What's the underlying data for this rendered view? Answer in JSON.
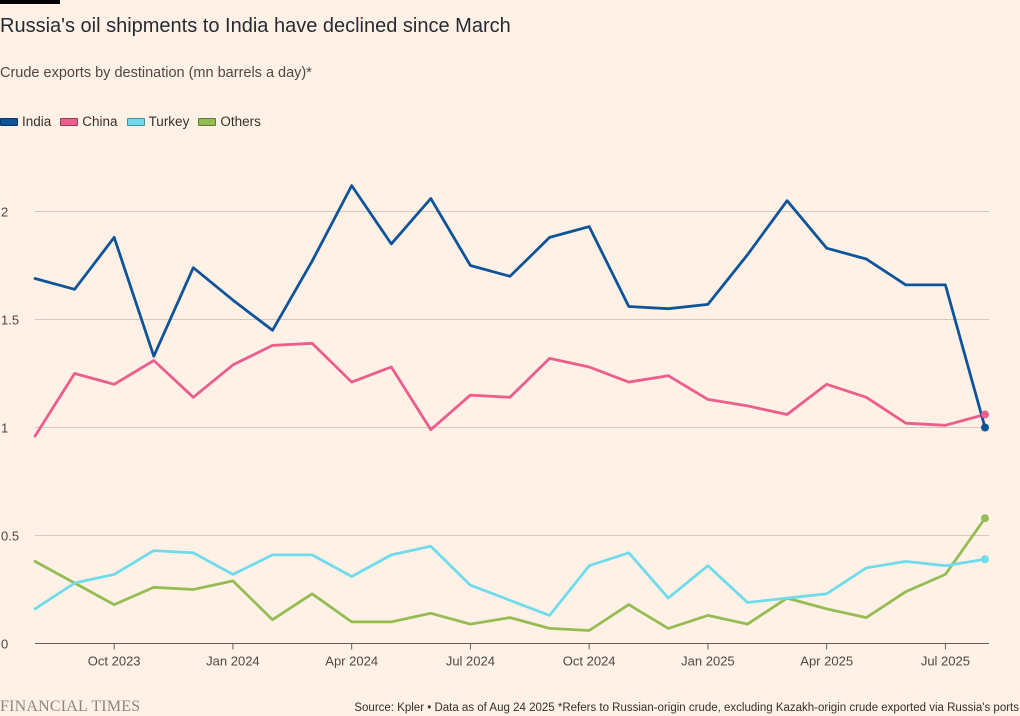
{
  "header": {
    "title": "Russia's oil shipments to India have declined since March",
    "subtitle": "Crude exports by destination (mn barrels a day)*"
  },
  "footer": {
    "brand": "FINANCIAL TIMES",
    "source": "Source: Kpler • Data as of Aug 24 2025 *Refers to Russian-origin crude, excluding Kazakh-origin crude exported via Russia's ports"
  },
  "colors": {
    "background": "#fff1e5",
    "grid": "#d4c9c1",
    "axis": "#66605c"
  },
  "chart_data": {
    "type": "line",
    "title": "Russia's oil shipments to India have declined since March",
    "subtitle": "Crude exports by destination (mn barrels a day)*",
    "xlabel": "",
    "ylabel": "",
    "x": [
      "2023-08",
      "2023-09",
      "2023-10",
      "2023-11",
      "2023-12",
      "2024-01",
      "2024-02",
      "2024-03",
      "2024-04",
      "2024-05",
      "2024-06",
      "2024-07",
      "2024-08",
      "2024-09",
      "2024-10",
      "2024-11",
      "2024-12",
      "2025-01",
      "2025-02",
      "2025-03",
      "2025-04",
      "2025-05",
      "2025-06",
      "2025-07",
      "2025-08"
    ],
    "x_ticks": [
      {
        "x": "2023-10",
        "label": "Oct 2023"
      },
      {
        "x": "2024-01",
        "label": "Jan 2024"
      },
      {
        "x": "2024-04",
        "label": "Apr 2024"
      },
      {
        "x": "2024-07",
        "label": "Jul 2024"
      },
      {
        "x": "2024-10",
        "label": "Oct 2024"
      },
      {
        "x": "2025-01",
        "label": "Jan 2025"
      },
      {
        "x": "2025-04",
        "label": "Apr 2025"
      },
      {
        "x": "2025-07",
        "label": "Jul 2025"
      }
    ],
    "y_ticks": [
      {
        "value": 0,
        "label": "0"
      },
      {
        "value": 0.5,
        "label": "0.5"
      },
      {
        "value": 1,
        "label": "1"
      },
      {
        "value": 1.5,
        "label": "1.5"
      },
      {
        "value": 2,
        "label": "2"
      }
    ],
    "ylim": [
      0,
      2.2
    ],
    "grid": true,
    "legend": "top-left",
    "series": [
      {
        "name": "India",
        "color": "#0f5499",
        "values": [
          1.69,
          1.64,
          1.88,
          1.33,
          1.74,
          1.59,
          1.45,
          1.77,
          2.12,
          1.85,
          2.06,
          1.75,
          1.7,
          1.88,
          1.93,
          1.56,
          1.55,
          1.57,
          1.8,
          2.05,
          1.83,
          1.78,
          1.66,
          1.66,
          1.0
        ]
      },
      {
        "name": "China",
        "color": "#eb5e8d",
        "values": [
          0.96,
          1.25,
          1.2,
          1.31,
          1.14,
          1.29,
          1.38,
          1.39,
          1.21,
          1.28,
          0.99,
          1.15,
          1.14,
          1.32,
          1.28,
          1.21,
          1.24,
          1.13,
          1.1,
          1.06,
          1.2,
          1.14,
          1.02,
          1.01,
          1.06
        ]
      },
      {
        "name": "Turkey",
        "color": "#70dbed",
        "values": [
          0.16,
          0.28,
          0.32,
          0.43,
          0.42,
          0.32,
          0.41,
          0.41,
          0.31,
          0.41,
          0.45,
          0.27,
          0.2,
          0.13,
          0.36,
          0.42,
          0.21,
          0.36,
          0.19,
          0.21,
          0.23,
          0.35,
          0.38,
          0.36,
          0.39
        ]
      },
      {
        "name": "Others",
        "color": "#96bc54",
        "values": [
          0.38,
          0.28,
          0.18,
          0.26,
          0.25,
          0.29,
          0.11,
          0.23,
          0.1,
          0.1,
          0.14,
          0.09,
          0.12,
          0.07,
          0.06,
          0.18,
          0.07,
          0.13,
          0.09,
          0.21,
          0.16,
          0.12,
          0.24,
          0.32,
          0.58
        ]
      }
    ]
  }
}
